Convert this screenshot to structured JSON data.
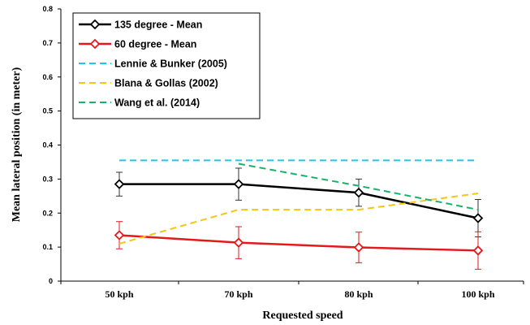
{
  "chart_data": {
    "type": "line",
    "title": "",
    "xlabel": "Requested speed",
    "ylabel": "Mean lateral position (in meter)",
    "categories": [
      "50 kph",
      "70 kph",
      "80 kph",
      "100 kph"
    ],
    "ylim": [
      0,
      0.8
    ],
    "yticks": [
      "0",
      "0.1",
      "0.2",
      "0.3",
      "0.4",
      "0.5",
      "0.6",
      "0.7",
      "0.8"
    ],
    "grid": false,
    "legend_position": "top-left",
    "series": [
      {
        "name": "135 degree - Mean",
        "color": "#000000",
        "style": "solid",
        "marker": "diamond",
        "values": [
          0.285,
          0.285,
          0.26,
          0.185
        ],
        "errors": [
          0.035,
          0.047,
          0.04,
          0.055
        ]
      },
      {
        "name": "60 degree - Mean",
        "color": "#e31a1c",
        "style": "solid",
        "marker": "diamond",
        "values": [
          0.135,
          0.113,
          0.099,
          0.09
        ],
        "errors": [
          0.04,
          0.047,
          0.045,
          0.055
        ]
      },
      {
        "name": "Lennie & Bunker (2005)",
        "color": "#1ec8e6",
        "style": "dashed",
        "marker": "none",
        "values": [
          0.355,
          0.355,
          0.355,
          0.355
        ]
      },
      {
        "name": "Blana & Gollas (2002)",
        "color": "#f5c518",
        "style": "dashed",
        "marker": "none",
        "values": [
          0.11,
          0.21,
          0.21,
          0.258
        ]
      },
      {
        "name": "Wang et al. (2014)",
        "color": "#1ab26b",
        "style": "dashed",
        "marker": "none",
        "values": [
          null,
          0.345,
          0.28,
          0.21
        ]
      }
    ]
  }
}
